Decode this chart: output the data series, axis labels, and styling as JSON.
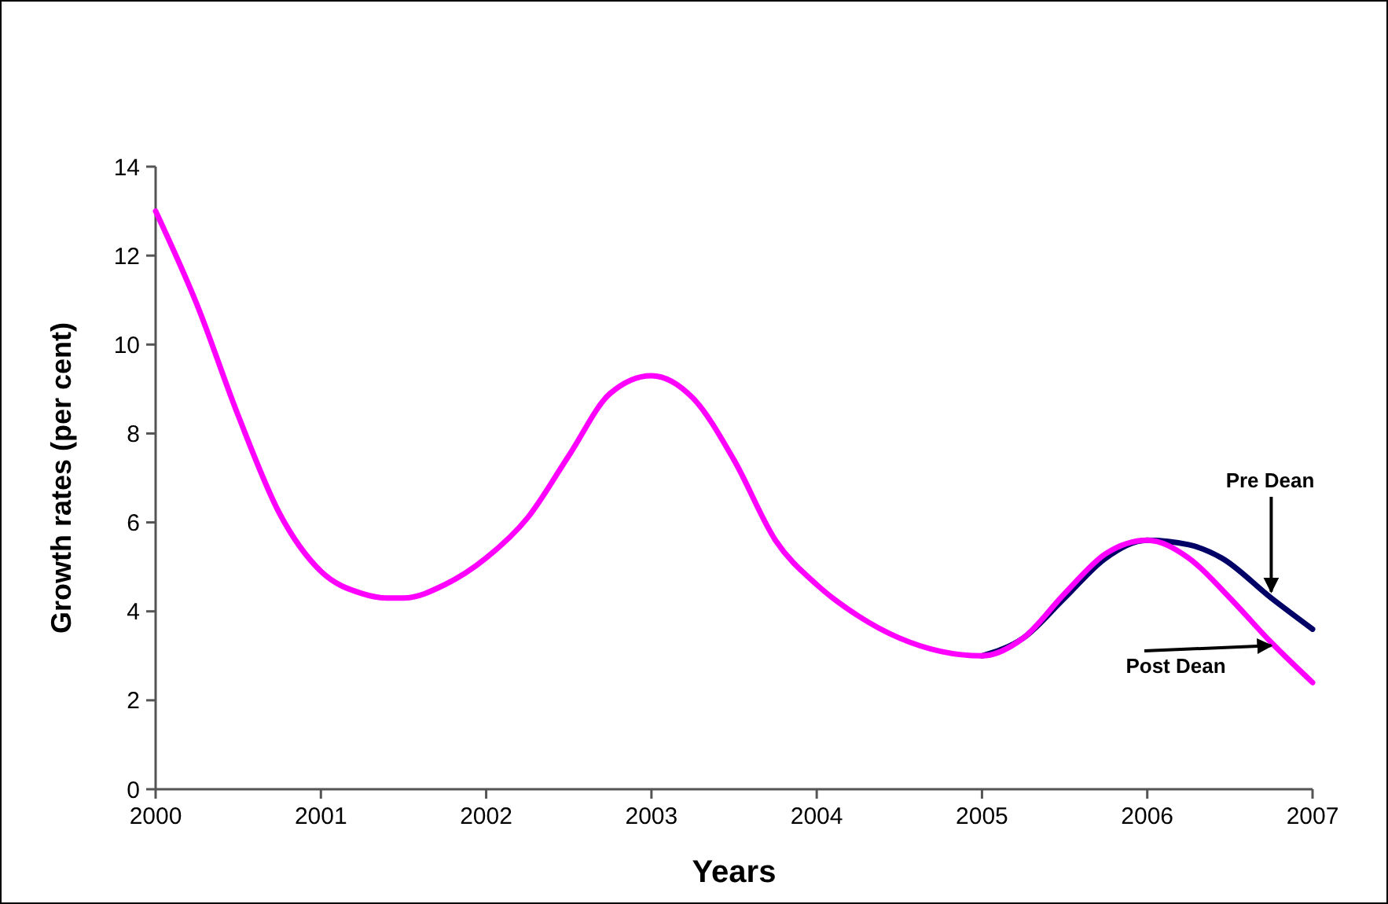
{
  "chart_data": {
    "type": "line",
    "xlabel": "Years",
    "ylabel": "Growth rates (per cent)",
    "xlim": [
      2000,
      2007
    ],
    "xticks": [
      2000,
      2001,
      2002,
      2003,
      2004,
      2005,
      2006,
      2007
    ],
    "ylim": [
      0,
      14
    ],
    "yticks": [
      0,
      2,
      4,
      6,
      8,
      10,
      12,
      14
    ],
    "grid": false,
    "marker": "none",
    "line_style": "solid",
    "series": [
      {
        "name": "Pre Dean",
        "color": "#000066",
        "x": [
          2005,
          2005.25,
          2005.5,
          2005.75,
          2006,
          2006.25,
          2006.45,
          2006.75,
          2007
        ],
        "values": [
          3.0,
          3.4,
          4.3,
          5.2,
          5.6,
          5.5,
          5.2,
          4.3,
          3.6
        ]
      },
      {
        "name": "Post Dean",
        "color": "#ff00ff",
        "x": [
          2000,
          2000.25,
          2000.5,
          2000.75,
          2001,
          2001.25,
          2001.4,
          2001.5,
          2001.75,
          2002,
          2002.25,
          2002.5,
          2002.75,
          2003,
          2003.25,
          2003.5,
          2003.75,
          2004,
          2004.25,
          2004.5,
          2004.75,
          2005,
          2005.25,
          2005.5,
          2005.75,
          2006,
          2006.25,
          2006.5,
          2006.75,
          2007
        ],
        "values": [
          13.0,
          10.9,
          8.4,
          6.2,
          4.9,
          4.4,
          4.3,
          4.3,
          4.6,
          5.2,
          6.1,
          7.5,
          8.9,
          9.3,
          8.8,
          7.4,
          5.6,
          4.6,
          3.9,
          3.4,
          3.1,
          3.0,
          3.4,
          4.4,
          5.3,
          5.6,
          5.2,
          4.3,
          3.3,
          2.4
        ]
      }
    ]
  }
}
